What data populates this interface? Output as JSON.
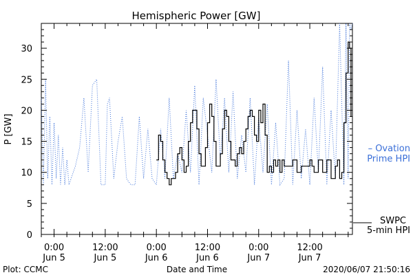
{
  "chart_data": {
    "type": "line",
    "title": "Hemispheric Power [GW]",
    "ylabel": "P [GW]",
    "xlabel": "Date and Time",
    "ylim": [
      0,
      34
    ],
    "xlim": [
      "2020-06-04T21:00",
      "2020-06-07T22:00"
    ],
    "yticks": [
      0,
      5,
      10,
      15,
      20,
      25,
      30
    ],
    "xticks": [
      {
        "t": "2020-06-05T00:00",
        "time": "0:00",
        "date": "Jun 5"
      },
      {
        "t": "2020-06-05T12:00",
        "time": "12:00",
        "date": "Jun 5"
      },
      {
        "t": "2020-06-06T00:00",
        "time": "0:00",
        "date": "Jun 6"
      },
      {
        "t": "2020-06-06T12:00",
        "time": "12:00",
        "date": "Jun 6"
      },
      {
        "t": "2020-06-07T00:00",
        "time": "0:00",
        "date": "Jun 7"
      },
      {
        "t": "2020-06-07T12:00",
        "time": "12:00",
        "date": "Jun 7"
      }
    ],
    "series": [
      {
        "name": "Ovation Prime HPI",
        "label_lines": [
          "– Ovation",
          "Prime HPI"
        ],
        "color": "#3a6fd8",
        "style": "dotted",
        "x": [
          "2020-06-04T21:00",
          "2020-06-04T21:30",
          "2020-06-04T22:00",
          "2020-06-04T22:30",
          "2020-06-04T23:00",
          "2020-06-04T23:30",
          "2020-06-05T00:00",
          "2020-06-05T00:30",
          "2020-06-05T01:00",
          "2020-06-05T01:30",
          "2020-06-05T02:00",
          "2020-06-05T02:30",
          "2020-06-05T03:00",
          "2020-06-05T03:30",
          "2020-06-05T04:00",
          "2020-06-05T05:00",
          "2020-06-05T06:00",
          "2020-06-05T07:00",
          "2020-06-05T08:00",
          "2020-06-05T09:00",
          "2020-06-05T10:00",
          "2020-06-05T11:00",
          "2020-06-05T12:00",
          "2020-06-05T12:30",
          "2020-06-05T13:00",
          "2020-06-05T14:00",
          "2020-06-05T15:00",
          "2020-06-05T16:00",
          "2020-06-05T17:00",
          "2020-06-05T18:00",
          "2020-06-05T19:00",
          "2020-06-05T20:00",
          "2020-06-05T21:00",
          "2020-06-05T22:00",
          "2020-06-05T23:00",
          "2020-06-06T00:00",
          "2020-06-06T01:00",
          "2020-06-06T02:00",
          "2020-06-06T03:00",
          "2020-06-06T04:00",
          "2020-06-06T05:00",
          "2020-06-06T06:00",
          "2020-06-06T07:00",
          "2020-06-06T08:00",
          "2020-06-06T09:00",
          "2020-06-06T10:00",
          "2020-06-06T11:00",
          "2020-06-06T12:00",
          "2020-06-06T13:00",
          "2020-06-06T14:00",
          "2020-06-06T15:00",
          "2020-06-06T16:00",
          "2020-06-06T17:00",
          "2020-06-06T18:00",
          "2020-06-06T19:00",
          "2020-06-06T20:00",
          "2020-06-06T21:00",
          "2020-06-06T22:00",
          "2020-06-06T23:00",
          "2020-06-07T00:00",
          "2020-06-07T01:00",
          "2020-06-07T02:00",
          "2020-06-07T03:00",
          "2020-06-07T04:00",
          "2020-06-07T05:00",
          "2020-06-07T06:00",
          "2020-06-07T07:00",
          "2020-06-07T08:00",
          "2020-06-07T09:00",
          "2020-06-07T10:00",
          "2020-06-07T11:00",
          "2020-06-07T12:00",
          "2020-06-07T13:00",
          "2020-06-07T14:00",
          "2020-06-07T15:00",
          "2020-06-07T16:00",
          "2020-06-07T17:00",
          "2020-06-07T18:00",
          "2020-06-07T19:00",
          "2020-06-07T20:00",
          "2020-06-07T20:30",
          "2020-06-07T21:00",
          "2020-06-07T21:20",
          "2020-06-07T21:40",
          "2020-06-07T22:00"
        ],
        "values": [
          22,
          8,
          25,
          9,
          19,
          8,
          18,
          9,
          16,
          8,
          14,
          8,
          12,
          8,
          9,
          11,
          14,
          22,
          10,
          24,
          25,
          8,
          8,
          21,
          22,
          9,
          15,
          19,
          9,
          8,
          8,
          19,
          9,
          17,
          9,
          8,
          17,
          9,
          22,
          9,
          13,
          10,
          20,
          10,
          24,
          8,
          22,
          16,
          10,
          25,
          12,
          22,
          10,
          23,
          9,
          16,
          10,
          22,
          8,
          19,
          10,
          21,
          8,
          18,
          8,
          9,
          28,
          8,
          20,
          9,
          17,
          8,
          22,
          10,
          27,
          8,
          20,
          9,
          34,
          8,
          34,
          9,
          34,
          33,
          34
        ]
      },
      {
        "name": "SWPC 5-min HPI",
        "label_lines": [
          "SWPC",
          "5-min HPI"
        ],
        "color": "#000000",
        "style": "solid",
        "x": [
          "2020-06-06T00:00",
          "2020-06-06T00:30",
          "2020-06-06T01:00",
          "2020-06-06T01:30",
          "2020-06-06T02:00",
          "2020-06-06T02:30",
          "2020-06-06T03:00",
          "2020-06-06T03:30",
          "2020-06-06T04:00",
          "2020-06-06T04:30",
          "2020-06-06T05:00",
          "2020-06-06T05:30",
          "2020-06-06T06:00",
          "2020-06-06T06:30",
          "2020-06-06T07:00",
          "2020-06-06T07:30",
          "2020-06-06T08:00",
          "2020-06-06T08:30",
          "2020-06-06T09:00",
          "2020-06-06T09:30",
          "2020-06-06T10:00",
          "2020-06-06T10:30",
          "2020-06-06T11:00",
          "2020-06-06T11:30",
          "2020-06-06T12:00",
          "2020-06-06T12:30",
          "2020-06-06T13:00",
          "2020-06-06T13:30",
          "2020-06-06T14:00",
          "2020-06-06T14:30",
          "2020-06-06T15:00",
          "2020-06-06T15:30",
          "2020-06-06T16:00",
          "2020-06-06T16:30",
          "2020-06-06T17:00",
          "2020-06-06T17:30",
          "2020-06-06T18:00",
          "2020-06-06T18:30",
          "2020-06-06T19:00",
          "2020-06-06T19:30",
          "2020-06-06T20:00",
          "2020-06-06T20:30",
          "2020-06-06T21:00",
          "2020-06-06T21:30",
          "2020-06-06T22:00",
          "2020-06-06T22:30",
          "2020-06-06T23:00",
          "2020-06-06T23:30",
          "2020-06-07T00:00",
          "2020-06-07T00:30",
          "2020-06-07T01:00",
          "2020-06-07T01:30",
          "2020-06-07T02:00",
          "2020-06-07T02:30",
          "2020-06-07T03:00",
          "2020-06-07T03:30",
          "2020-06-07T04:00",
          "2020-06-07T04:30",
          "2020-06-07T05:00",
          "2020-06-07T05:30",
          "2020-06-07T06:00",
          "2020-06-07T07:00",
          "2020-06-07T08:00",
          "2020-06-07T09:00",
          "2020-06-07T10:00",
          "2020-06-07T11:00",
          "2020-06-07T12:00",
          "2020-06-07T12:30",
          "2020-06-07T13:00",
          "2020-06-07T14:00",
          "2020-06-07T15:00",
          "2020-06-07T16:00",
          "2020-06-07T17:00",
          "2020-06-07T18:00",
          "2020-06-07T18:30",
          "2020-06-07T19:00",
          "2020-06-07T19:30",
          "2020-06-07T20:00",
          "2020-06-07T20:30",
          "2020-06-07T21:00",
          "2020-06-07T21:20",
          "2020-06-07T21:40"
        ],
        "values": [
          12,
          16,
          15,
          12,
          10,
          9,
          8,
          9,
          9,
          10,
          13,
          14,
          12,
          10,
          11,
          15,
          18,
          20,
          20,
          17,
          13,
          11,
          11,
          14,
          18,
          21,
          19,
          15,
          11,
          11,
          13,
          17,
          20,
          19,
          15,
          12,
          12,
          11,
          13,
          14,
          13,
          15,
          17,
          19,
          20,
          19,
          16,
          15,
          20,
          18,
          21,
          16,
          10,
          11,
          10,
          12,
          11,
          12,
          10,
          12,
          11,
          11,
          12,
          10,
          11,
          11,
          12,
          11,
          10,
          12,
          10,
          12,
          9,
          11,
          12,
          9,
          10,
          18,
          26,
          31,
          30,
          19
        ]
      }
    ],
    "grid": false,
    "legend": "right, outside plot area"
  },
  "footer": {
    "left": "Plot: CCMC",
    "center": "Date and Time",
    "right": "2020/06/07 21:50:16"
  }
}
